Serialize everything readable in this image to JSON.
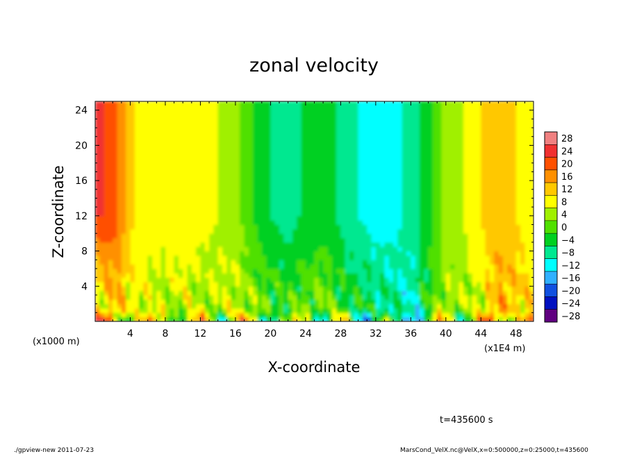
{
  "chart_data": {
    "type": "heatmap",
    "title": "zonal velocity",
    "xlabel": "X-coordinate",
    "ylabel": "Z-coordinate",
    "x_unit": "(x1000 m)",
    "x_unit_right": "(x1E4 m)",
    "xlim": [
      0,
      50
    ],
    "ylim": [
      0,
      25
    ],
    "x_ticks": [
      "4",
      "8",
      "12",
      "16",
      "20",
      "24",
      "28",
      "32",
      "36",
      "40",
      "44",
      "48"
    ],
    "y_ticks": [
      "4",
      "8",
      "12",
      "16",
      "20",
      "24"
    ],
    "color_levels": [
      "28",
      "24",
      "20",
      "16",
      "12",
      "8",
      "4",
      "0",
      "−4",
      "−8",
      "−12",
      "−16",
      "−20",
      "−24",
      "−28"
    ],
    "colors": [
      "#f08080",
      "#f03030",
      "#ff5000",
      "#ff9000",
      "#ffc800",
      "#ffff00",
      "#a0f000",
      "#50e000",
      "#00d020",
      "#00e890",
      "#00ffff",
      "#30b0ff",
      "#1050e0",
      "#0010c0",
      "#600080"
    ],
    "field_columns": {
      "x": [
        0,
        1,
        2,
        3,
        4,
        6,
        8,
        10,
        12,
        14,
        16,
        18,
        20,
        22,
        24,
        26,
        28,
        30,
        32,
        34,
        36,
        38,
        40,
        42,
        44,
        46,
        48,
        50
      ],
      "upper_velocity": [
        22,
        22,
        21,
        16,
        11,
        6,
        8,
        10,
        7,
        6,
        4,
        -2,
        -6,
        -8,
        -5,
        -4,
        -7,
        -10,
        -12,
        -11,
        -9,
        -4,
        4,
        6,
        10,
        14,
        10,
        8
      ],
      "lower_velocity": [
        6,
        8,
        12,
        12,
        8,
        6,
        4,
        6,
        4,
        5,
        6,
        2,
        0,
        -2,
        0,
        2,
        -2,
        -4,
        -6,
        -8,
        -10,
        -2,
        4,
        4,
        6,
        14,
        12,
        10
      ]
    },
    "annotation": "t=435600 s",
    "footer_left": "./gpview-new   2011-07-23",
    "footer_right": "MarsCond_VelX.nc@VelX,x=0:500000,z=0:25000,t=435600"
  }
}
